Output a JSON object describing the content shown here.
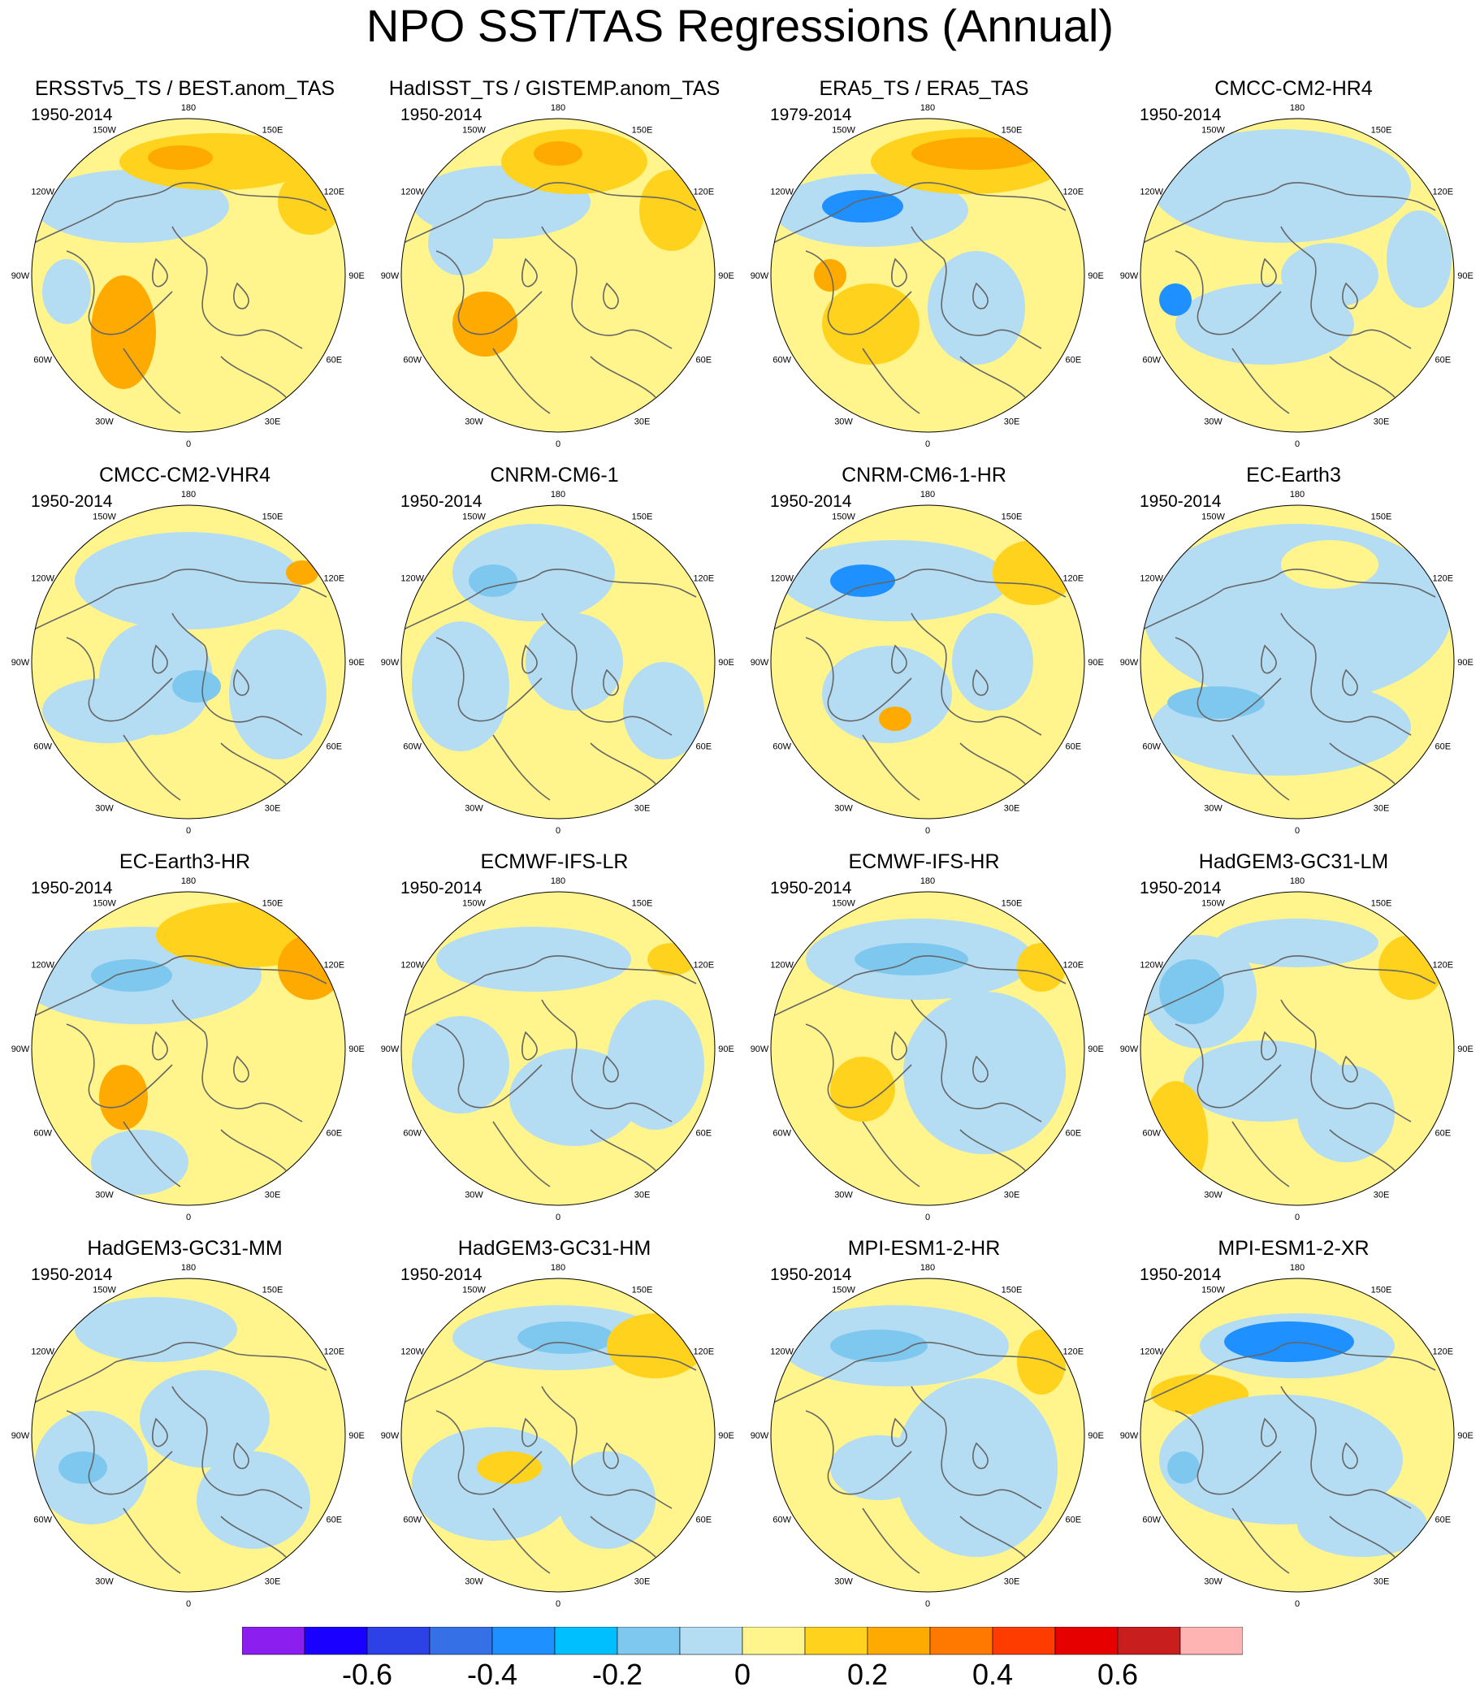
{
  "title": "NPO SST/TAS Regressions (Annual)",
  "panels": [
    {
      "title": "ERSSTv5_TS / BEST.anom_TAS",
      "period": "1950-2014"
    },
    {
      "title": "HadISST_TS / GISTEMP.anom_TAS",
      "period": "1950-2014"
    },
    {
      "title": "ERA5_TS / ERA5_TAS",
      "period": "1979-2014"
    },
    {
      "title": "CMCC-CM2-HR4",
      "period": "1950-2014"
    },
    {
      "title": "CMCC-CM2-VHR4",
      "period": "1950-2014"
    },
    {
      "title": "CNRM-CM6-1",
      "period": "1950-2014"
    },
    {
      "title": "CNRM-CM6-1-HR",
      "period": "1950-2014"
    },
    {
      "title": "EC-Earth3",
      "period": "1950-2014"
    },
    {
      "title": "EC-Earth3-HR",
      "period": "1950-2014"
    },
    {
      "title": "ECMWF-IFS-LR",
      "period": "1950-2014"
    },
    {
      "title": "ECMWF-IFS-HR",
      "period": "1950-2014"
    },
    {
      "title": "HadGEM3-GC31-LM",
      "period": "1950-2014"
    },
    {
      "title": "HadGEM3-GC31-MM",
      "period": "1950-2014"
    },
    {
      "title": "HadGEM3-GC31-HM",
      "period": "1950-2014"
    },
    {
      "title": "MPI-ESM1-2-HR",
      "period": "1950-2014"
    },
    {
      "title": "MPI-ESM1-2-XR",
      "period": "1950-2014"
    }
  ],
  "longitude_labels": [
    "180",
    "150E",
    "120E",
    "90E",
    "60E",
    "30E",
    "0",
    "30W",
    "60W",
    "90W",
    "120W",
    "150W"
  ],
  "colorbar": {
    "colors": [
      "#8c1ff0",
      "#1a00ff",
      "#2d42e6",
      "#3670e6",
      "#1e90ff",
      "#00bfff",
      "#7ec8f0",
      "#b4dcf2",
      "#fff58c",
      "#ffd21e",
      "#ffaa00",
      "#ff7800",
      "#ff3c00",
      "#e60000",
      "#c81e1e",
      "#ffb4b4"
    ],
    "labels": [
      "-0.6",
      "-0.4",
      "-0.2",
      "0",
      "0.2",
      "0.4",
      "0.6"
    ],
    "label_values": [
      -0.6,
      -0.4,
      -0.2,
      0,
      0.2,
      0.4,
      0.6
    ]
  },
  "colors": {
    "neutral_positive": "#fff58c",
    "neutral_negative": "#b4dcf2",
    "weak_positive": "#ffd21e",
    "moderate_positive": "#ffaa00",
    "weak_negative": "#7ec8f0",
    "moderate_negative": "#1e90ff",
    "coastline": "#666666"
  }
}
